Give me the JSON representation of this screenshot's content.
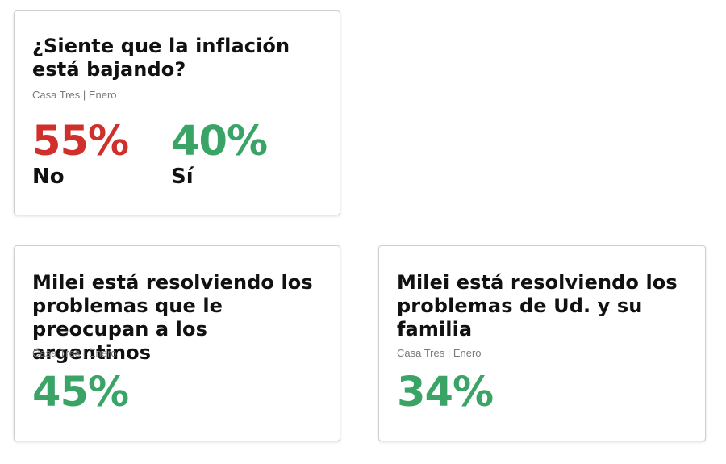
{
  "cards": [
    {
      "question": "¿Siente que la inflación está bajando?",
      "source": "Casa Tres | Enero",
      "results": [
        {
          "value": "55%",
          "label": "No",
          "color": "#d0302b"
        },
        {
          "value": "40%",
          "label": "Sí",
          "color": "#3aa466"
        }
      ]
    },
    {
      "question": "Milei está resolviendo los problemas que le preocupan a los argentinos",
      "source": "Casa Tres | Enero",
      "results": [
        {
          "value": "45%",
          "color": "#3aa466"
        }
      ]
    },
    {
      "question": "Milei está resolviendo los problemas de Ud. y su familia",
      "source": "Casa Tres | Enero",
      "results": [
        {
          "value": "34%",
          "color": "#3aa466"
        }
      ]
    }
  ]
}
